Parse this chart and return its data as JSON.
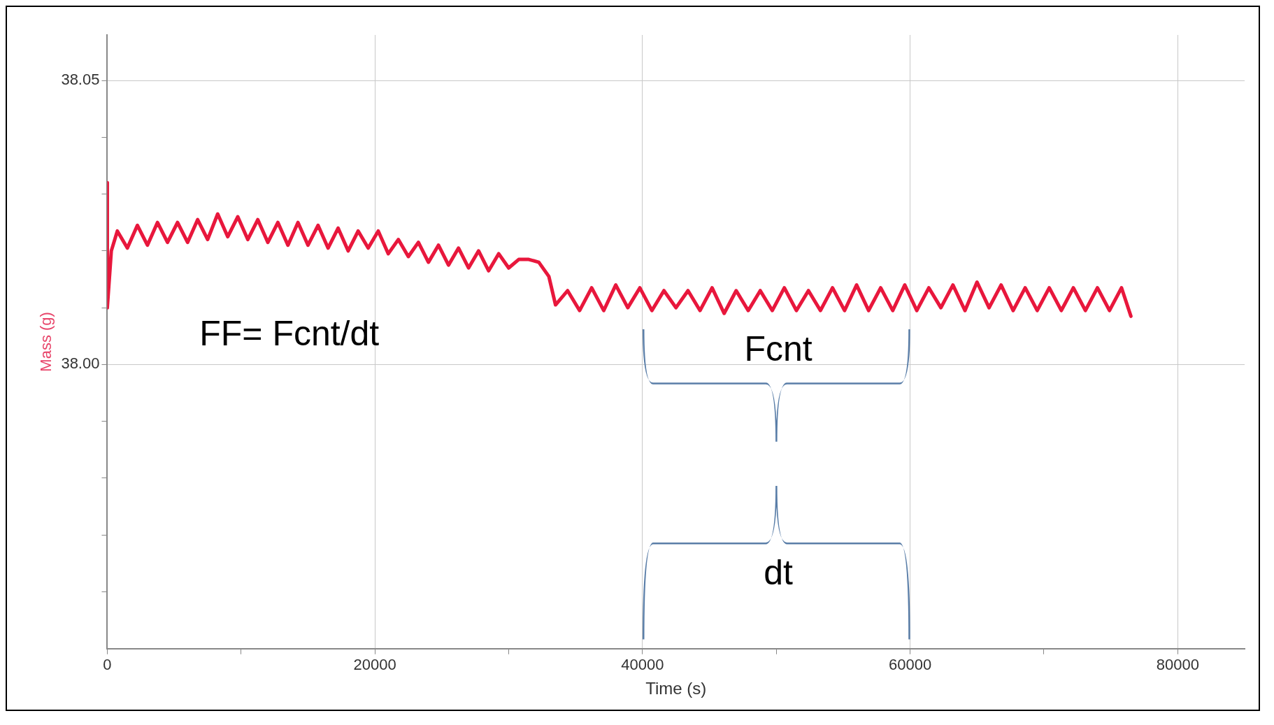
{
  "chart_data": {
    "type": "line",
    "xlabel": "Time (s)",
    "ylabel": "Mass (g)",
    "xlim": [
      0,
      85000
    ],
    "ylim": [
      37.95,
      38.058
    ],
    "xticks": [
      0,
      {
        "value": 10000,
        "label": null
      },
      20000,
      {
        "value": 30000,
        "label": null
      },
      40000,
      {
        "value": 50000,
        "label": null
      },
      60000,
      {
        "value": 70000,
        "label": null
      },
      80000
    ],
    "yticks": [
      {
        "value": 37.96,
        "label": null
      },
      {
        "value": 37.97,
        "label": null
      },
      {
        "value": 37.98,
        "label": null
      },
      {
        "value": 37.99,
        "label": null
      },
      {
        "value": 38.0,
        "label": "38.00"
      },
      {
        "value": 38.01,
        "label": null
      },
      {
        "value": 38.02,
        "label": null
      },
      {
        "value": 38.03,
        "label": null
      },
      {
        "value": 38.04,
        "label": null
      },
      38.05
    ],
    "grid": true,
    "legend": false,
    "marker": "none",
    "line_style": "solid",
    "series": [
      {
        "color": "#e8173c",
        "x": [
          0,
          0,
          300,
          750,
          1500,
          2250,
          3000,
          3750,
          4500,
          5250,
          6000,
          6750,
          7500,
          8250,
          9000,
          9750,
          10500,
          11250,
          12000,
          12750,
          13500,
          14250,
          15000,
          15750,
          16500,
          17250,
          18000,
          18750,
          19500,
          20250,
          21000,
          21750,
          22500,
          23250,
          24000,
          24750,
          25500,
          26250,
          27000,
          27750,
          28500,
          29250,
          30000,
          30750,
          31500,
          32250,
          33000,
          33500,
          34400,
          35300,
          36200,
          37100,
          38000,
          38900,
          39800,
          40700,
          41600,
          42500,
          43400,
          44300,
          45200,
          46100,
          47000,
          47900,
          48800,
          49700,
          50600,
          51500,
          52400,
          53300,
          54200,
          55100,
          56000,
          56900,
          57800,
          58700,
          59600,
          60500,
          61400,
          62300,
          63200,
          64100,
          65000,
          65900,
          66800,
          67700,
          68600,
          69500,
          70400,
          71300,
          72200,
          73100,
          74000,
          74900,
          75800,
          76500
        ],
        "values": [
          38.032,
          38.01,
          38.02,
          38.0235,
          38.0205,
          38.0245,
          38.021,
          38.025,
          38.0215,
          38.025,
          38.0215,
          38.0255,
          38.022,
          38.0265,
          38.0225,
          38.026,
          38.022,
          38.0255,
          38.0215,
          38.025,
          38.021,
          38.025,
          38.021,
          38.0245,
          38.0205,
          38.024,
          38.02,
          38.0235,
          38.0205,
          38.0235,
          38.0195,
          38.022,
          38.019,
          38.0215,
          38.018,
          38.021,
          38.0175,
          38.0205,
          38.017,
          38.02,
          38.0165,
          38.0195,
          38.017,
          38.0185,
          38.0185,
          38.018,
          38.0155,
          38.0105,
          38.013,
          38.0095,
          38.0135,
          38.0095,
          38.014,
          38.01,
          38.0135,
          38.0095,
          38.013,
          38.01,
          38.013,
          38.0095,
          38.0135,
          38.009,
          38.013,
          38.0095,
          38.013,
          38.0095,
          38.0135,
          38.0095,
          38.013,
          38.0095,
          38.0135,
          38.0095,
          38.014,
          38.0095,
          38.0135,
          38.0095,
          38.014,
          38.0095,
          38.0135,
          38.01,
          38.014,
          38.0095,
          38.0145,
          38.01,
          38.014,
          38.0095,
          38.0135,
          38.0095,
          38.0135,
          38.0095,
          38.0135,
          38.0095,
          38.0135,
          38.0095,
          38.0135,
          38.0085
        ]
      }
    ],
    "annotations": [
      "FF= Fcnt/dt",
      "Fcnt",
      "dt"
    ]
  }
}
